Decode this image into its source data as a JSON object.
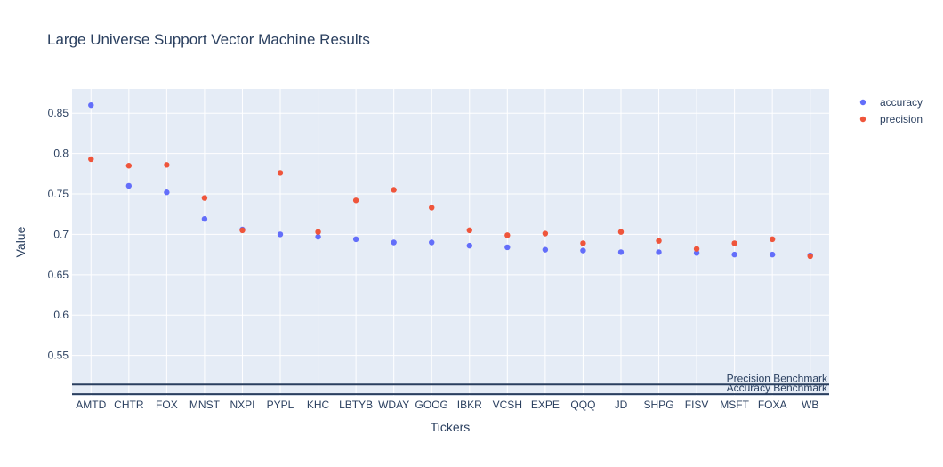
{
  "chart_data": {
    "type": "scatter",
    "title": "Large Universe Support Vector Machine Results",
    "xlabel": "Tickers",
    "ylabel": "Value",
    "ylim": [
      0.5,
      0.88
    ],
    "yticks": [
      0.55,
      0.6,
      0.65,
      0.7,
      0.75,
      0.8,
      0.85
    ],
    "grid": true,
    "legend_position": "top-right",
    "categories": [
      "AMTD",
      "CHTR",
      "FOX",
      "MNST",
      "NXPI",
      "PYPL",
      "KHC",
      "LBTYB",
      "WDAY",
      "GOOG",
      "IBKR",
      "VCSH",
      "EXPE",
      "QQQ",
      "JD",
      "SHPG",
      "FISV",
      "MSFT",
      "FOXA",
      "WB"
    ],
    "series": [
      {
        "name": "accuracy",
        "color": "#636efa",
        "values": [
          0.86,
          0.76,
          0.752,
          0.719,
          0.706,
          0.7,
          0.697,
          0.694,
          0.69,
          0.69,
          0.686,
          0.684,
          0.681,
          0.68,
          0.678,
          0.678,
          0.677,
          0.675,
          0.675,
          0.674
        ]
      },
      {
        "name": "precision",
        "color": "#ef553b",
        "values": [
          0.793,
          0.785,
          0.786,
          0.745,
          0.705,
          0.776,
          0.703,
          0.742,
          0.755,
          0.733,
          0.705,
          0.699,
          0.701,
          0.689,
          0.703,
          0.692,
          0.682,
          0.689,
          0.694,
          0.673
        ]
      }
    ],
    "benchmarks": [
      {
        "label": "Precision Benchmark",
        "value": 0.514
      },
      {
        "label": "Accuracy Benchmark",
        "value": 0.502
      }
    ]
  }
}
